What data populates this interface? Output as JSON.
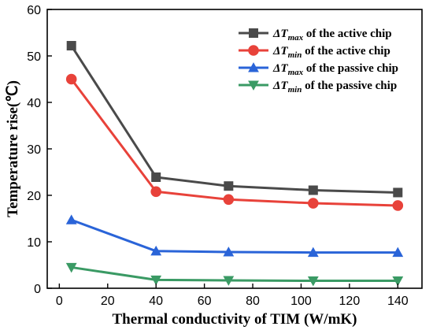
{
  "chart_data": {
    "type": "line",
    "xlabel": "Thermal conductivity of TIM (W/mK)",
    "ylabel": "Temperature rise(℃)",
    "xlim": [
      -5,
      150
    ],
    "ylim": [
      0,
      60
    ],
    "xticks": [
      0,
      20,
      40,
      60,
      80,
      100,
      120,
      140
    ],
    "yticks": [
      0,
      10,
      20,
      30,
      40,
      50,
      60
    ],
    "x": [
      5,
      40,
      70,
      105,
      140
    ],
    "legend_position": "top-right",
    "grid": false,
    "series": [
      {
        "name_main": "ΔT",
        "name_sub": "max",
        "name_rest": "of the active chip",
        "marker": "square",
        "color": "#4a4a4a",
        "values": [
          52.2,
          23.9,
          22.0,
          21.1,
          20.6
        ]
      },
      {
        "name_main": "ΔT",
        "name_sub": "min",
        "name_rest": "of the active chip",
        "marker": "circle",
        "color": "#e8423a",
        "values": [
          45.0,
          20.8,
          19.1,
          18.3,
          17.8
        ]
      },
      {
        "name_main": "ΔT",
        "name_sub": "max",
        "name_rest": "of the passive chip",
        "marker": "triangle-up",
        "color": "#2a64d8",
        "values": [
          14.7,
          8.0,
          7.8,
          7.7,
          7.7
        ]
      },
      {
        "name_main": "ΔT",
        "name_sub": "min",
        "name_rest": "of the passive chip",
        "marker": "triangle-down",
        "color": "#3a9a64",
        "values": [
          4.5,
          1.8,
          1.7,
          1.6,
          1.6
        ]
      }
    ]
  }
}
